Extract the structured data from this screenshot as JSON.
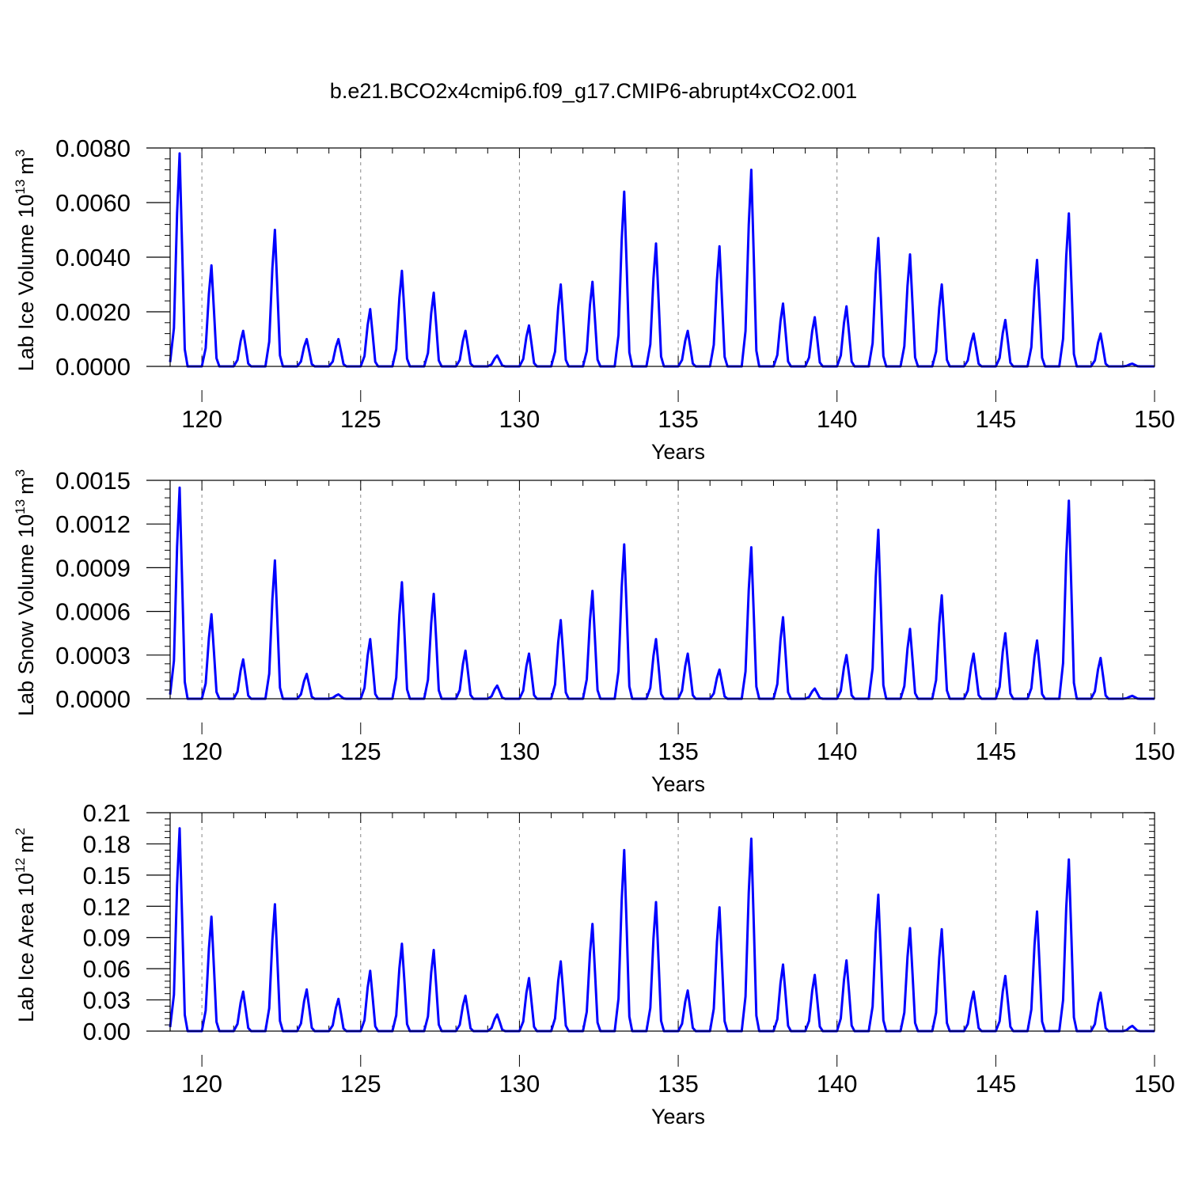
{
  "title": "b.e21.BCO2x4cmip6.f09_g17.CMIP6-abrupt4xCO2.001",
  "colors": {
    "line": "#0000ff",
    "axis": "#000000",
    "grid": "#888888"
  },
  "chart_data": [
    {
      "type": "line",
      "ylabel_main": "Lab Ice Volume 10",
      "ylabel_exp": "13",
      "ylabel_unit": "m",
      "ylabel_unit_exp": "3",
      "xlabel": "Years",
      "xlim": [
        119,
        150
      ],
      "ylim": [
        0,
        0.008
      ],
      "xticks": [
        120,
        125,
        130,
        135,
        140,
        145,
        150
      ],
      "xtick_labels": [
        "120",
        "125",
        "130",
        "135",
        "140",
        "145",
        "150"
      ],
      "yticks": [
        0,
        0.002,
        0.004,
        0.006,
        0.008
      ],
      "ytick_labels": [
        "0.0000",
        "0.0020",
        "0.0040",
        "0.0060",
        "0.0080"
      ],
      "peak_years": [
        119.3,
        120.3,
        121.3,
        122.3,
        123.3,
        124.3,
        125.3,
        126.3,
        127.3,
        128.3,
        129.3,
        130.3,
        131.3,
        132.3,
        133.3,
        134.3,
        135.3,
        136.3,
        137.3,
        138.3,
        139.3,
        140.3,
        141.3,
        142.3,
        143.3,
        144.3,
        145.3,
        146.3,
        147.3,
        148.3,
        149.3
      ],
      "peak_values": [
        0.0078,
        0.0037,
        0.0013,
        0.005,
        0.001,
        0.001,
        0.0021,
        0.0035,
        0.0027,
        0.0013,
        0.0004,
        0.0015,
        0.003,
        0.0031,
        0.0064,
        0.0045,
        0.0013,
        0.0044,
        0.0072,
        0.0023,
        0.0018,
        0.0022,
        0.0047,
        0.0041,
        0.003,
        0.0012,
        0.0017,
        0.0039,
        0.0056,
        0.0012,
        0.0001
      ]
    },
    {
      "type": "line",
      "ylabel_main": "Lab Snow Volume 10",
      "ylabel_exp": "13",
      "ylabel_unit": "m",
      "ylabel_unit_exp": "3",
      "xlabel": "Years",
      "xlim": [
        119,
        150
      ],
      "ylim": [
        0,
        0.0015
      ],
      "xticks": [
        120,
        125,
        130,
        135,
        140,
        145,
        150
      ],
      "xtick_labels": [
        "120",
        "125",
        "130",
        "135",
        "140",
        "145",
        "150"
      ],
      "yticks": [
        0,
        0.0003,
        0.0006,
        0.0009,
        0.0012,
        0.0015
      ],
      "ytick_labels": [
        "0.0000",
        "0.0003",
        "0.0006",
        "0.0009",
        "0.0012",
        "0.0015"
      ],
      "peak_years": [
        119.3,
        120.3,
        121.3,
        122.3,
        123.3,
        124.3,
        125.3,
        126.3,
        127.3,
        128.3,
        129.3,
        130.3,
        131.3,
        132.3,
        133.3,
        134.3,
        135.3,
        136.3,
        137.3,
        138.3,
        139.3,
        140.3,
        141.3,
        142.3,
        143.3,
        144.3,
        145.3,
        146.3,
        147.3,
        148.3,
        149.3
      ],
      "peak_values": [
        0.00145,
        0.00058,
        0.00027,
        0.00095,
        0.00017,
        3e-05,
        0.00041,
        0.0008,
        0.00072,
        0.00033,
        9e-05,
        0.00031,
        0.00054,
        0.00074,
        0.00106,
        0.00041,
        0.00031,
        0.0002,
        0.00104,
        0.00056,
        7e-05,
        0.0003,
        0.00116,
        0.00048,
        0.00071,
        0.00031,
        0.00045,
        0.0004,
        0.00136,
        0.00028,
        2e-05
      ]
    },
    {
      "type": "line",
      "ylabel_main": "Lab Ice Area 10",
      "ylabel_exp": "12",
      "ylabel_unit": "m",
      "ylabel_unit_exp": "2",
      "xlabel": "Years",
      "xlim": [
        119,
        150
      ],
      "ylim": [
        0,
        0.21
      ],
      "xticks": [
        120,
        125,
        130,
        135,
        140,
        145,
        150
      ],
      "xtick_labels": [
        "120",
        "125",
        "130",
        "135",
        "140",
        "145",
        "150"
      ],
      "yticks": [
        0,
        0.03,
        0.06,
        0.09,
        0.12,
        0.15,
        0.18,
        0.21
      ],
      "ytick_labels": [
        "0.00",
        "0.03",
        "0.06",
        "0.09",
        "0.12",
        "0.15",
        "0.18",
        "0.21"
      ],
      "peak_years": [
        119.3,
        120.3,
        121.3,
        122.3,
        123.3,
        124.3,
        125.3,
        126.3,
        127.3,
        128.3,
        129.3,
        130.3,
        131.3,
        132.3,
        133.3,
        134.3,
        135.3,
        136.3,
        137.3,
        138.3,
        139.3,
        140.3,
        141.3,
        142.3,
        143.3,
        144.3,
        145.3,
        146.3,
        147.3,
        148.3,
        149.3
      ],
      "peak_values": [
        0.195,
        0.11,
        0.038,
        0.122,
        0.04,
        0.031,
        0.058,
        0.084,
        0.078,
        0.034,
        0.016,
        0.051,
        0.067,
        0.103,
        0.174,
        0.124,
        0.039,
        0.119,
        0.185,
        0.064,
        0.054,
        0.068,
        0.131,
        0.099,
        0.098,
        0.038,
        0.053,
        0.115,
        0.165,
        0.037,
        0.005
      ]
    }
  ]
}
